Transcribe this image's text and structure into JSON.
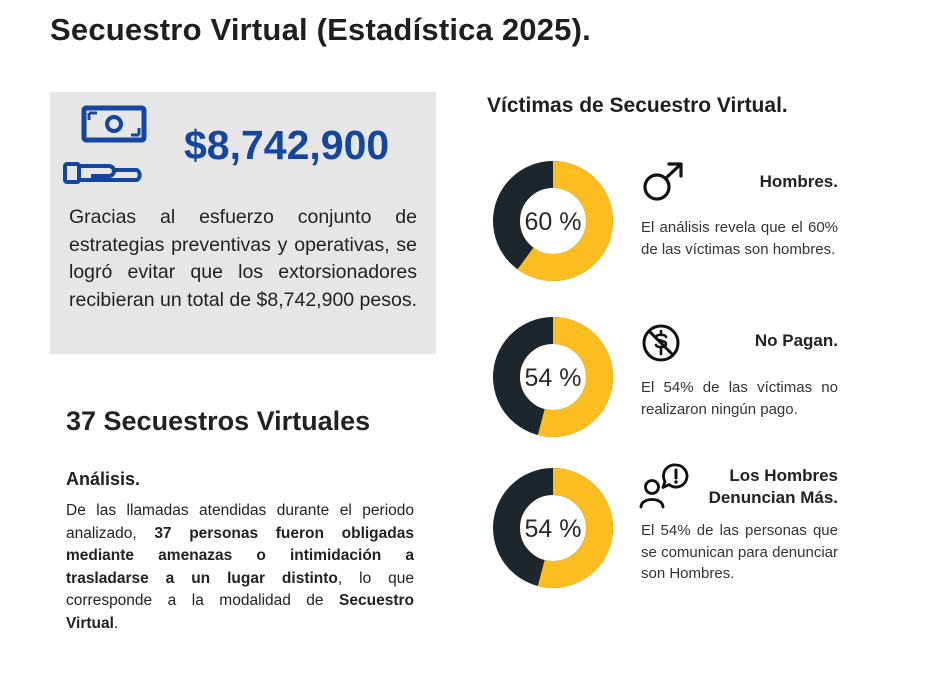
{
  "title": "Secuestro Virtual (Estadística 2025).",
  "savings": {
    "icon": "money-hand-icon",
    "amount": "$8,742,900",
    "text": "Gracias al esfuerzo conjunto de estrategias preventivas y operativas, se logró evitar que los extorsionadores recibieran un total de $8,742,900 pesos."
  },
  "cases": {
    "heading": "37 Secuestros Virtuales",
    "analysis_heading": "Análisis.",
    "analysis_parts": [
      {
        "text": "De las llamadas atendidas durante el periodo analizado, ",
        "bold": false
      },
      {
        "text": "37 personas fueron obligadas mediante amenazas o intimidación a trasladarse a un lugar distinto",
        "bold": true
      },
      {
        "text": ", lo que corresponde a la modalidad de ",
        "bold": false
      },
      {
        "text": "Secuestro Virtual",
        "bold": true
      },
      {
        "text": ".",
        "bold": false
      }
    ]
  },
  "victims": {
    "heading": "Víctimas de Secuestro Virtual.",
    "colors": {
      "fill": "#fbbd1f",
      "track": "#1c262c"
    },
    "stats": [
      {
        "percent": 60,
        "label": "60 %",
        "icon": "male-symbol-icon",
        "title": "Hombres.",
        "text": "El análisis revela que el 60% de las víctimas son hombres."
      },
      {
        "percent": 54,
        "label": "54 %",
        "icon": "no-dollar-icon",
        "title": "No Pagan.",
        "text": "El 54% de las víctimas no realizaron ningún pago."
      },
      {
        "percent": 54,
        "label": "54 %",
        "icon": "person-alert-icon",
        "title": "Los Hombres Denuncian Más.",
        "text": "El 54% de las personas que se comunican para denunciar son Hombres."
      }
    ]
  }
}
